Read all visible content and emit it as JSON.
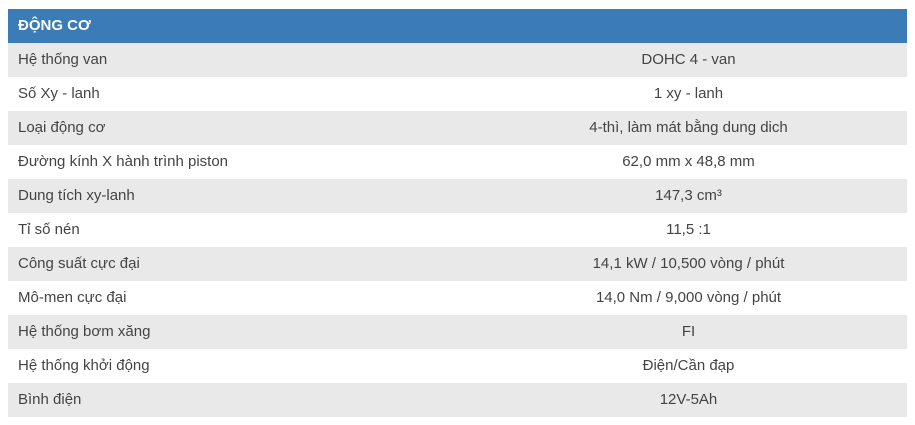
{
  "header": {
    "title": "ĐỘNG CƠ"
  },
  "table": {
    "rows": [
      [
        "Hệ thống van",
        "DOHC 4 - van"
      ],
      [
        "Số Xy - lanh",
        "1 xy - lanh"
      ],
      [
        "Loại động cơ",
        "4-thì, làm mát bằng dung dich"
      ],
      [
        "Đường kính X hành trình piston",
        "62,0 mm x 48,8 mm"
      ],
      [
        "Dung tích xy-lanh",
        "147,3 cm³"
      ],
      [
        "Tỉ số nén",
        "11,5 :1"
      ],
      [
        "Công suất cực đại",
        "14,1 kW / 10,500 vòng / phút"
      ],
      [
        "Mô-men cực đại",
        "14,0 Nm / 9,000 vòng / phút"
      ],
      [
        "Hệ thống bơm xăng",
        "FI"
      ],
      [
        "Hệ thống khởi động",
        "Điện/Cần đạp"
      ],
      [
        "Bình điện",
        "12V-5Ah"
      ]
    ]
  }
}
